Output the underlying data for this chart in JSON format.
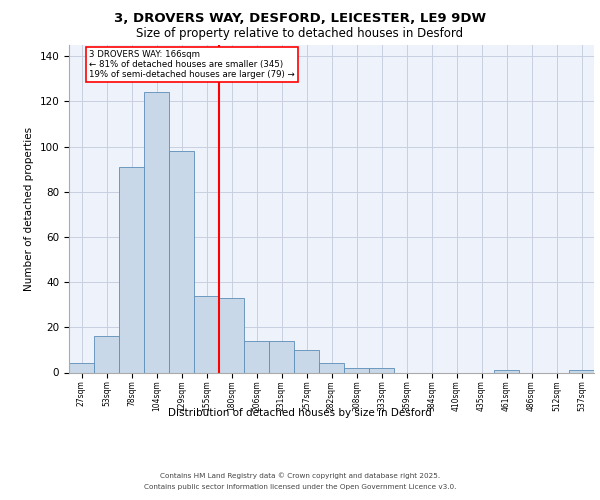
{
  "title_line1": "3, DROVERS WAY, DESFORD, LEICESTER, LE9 9DW",
  "title_line2": "Size of property relative to detached houses in Desford",
  "xlabel": "Distribution of detached houses by size in Desford",
  "ylabel": "Number of detached properties",
  "bin_labels": [
    "27sqm",
    "53sqm",
    "78sqm",
    "104sqm",
    "129sqm",
    "155sqm",
    "180sqm",
    "206sqm",
    "231sqm",
    "257sqm",
    "282sqm",
    "308sqm",
    "333sqm",
    "359sqm",
    "384sqm",
    "410sqm",
    "435sqm",
    "461sqm",
    "486sqm",
    "512sqm",
    "537sqm"
  ],
  "bar_values": [
    4,
    16,
    91,
    124,
    98,
    34,
    33,
    14,
    14,
    10,
    4,
    2,
    2,
    0,
    0,
    0,
    0,
    1,
    0,
    0,
    1
  ],
  "bar_color": "#c8d8e8",
  "bar_edge_color": "#5b8db8",
  "red_line_x": 5.5,
  "annotation_line1": "3 DROVERS WAY: 166sqm",
  "annotation_line2": "← 81% of detached houses are smaller (345)",
  "annotation_line3": "19% of semi-detached houses are larger (79) →",
  "ylim": [
    0,
    145
  ],
  "yticks": [
    0,
    20,
    40,
    60,
    80,
    100,
    120,
    140
  ],
  "background_color": "#eef2fb",
  "grid_color": "#c8cfe0",
  "footer_line1": "Contains HM Land Registry data © Crown copyright and database right 2025.",
  "footer_line2": "Contains public sector information licensed under the Open Government Licence v3.0."
}
